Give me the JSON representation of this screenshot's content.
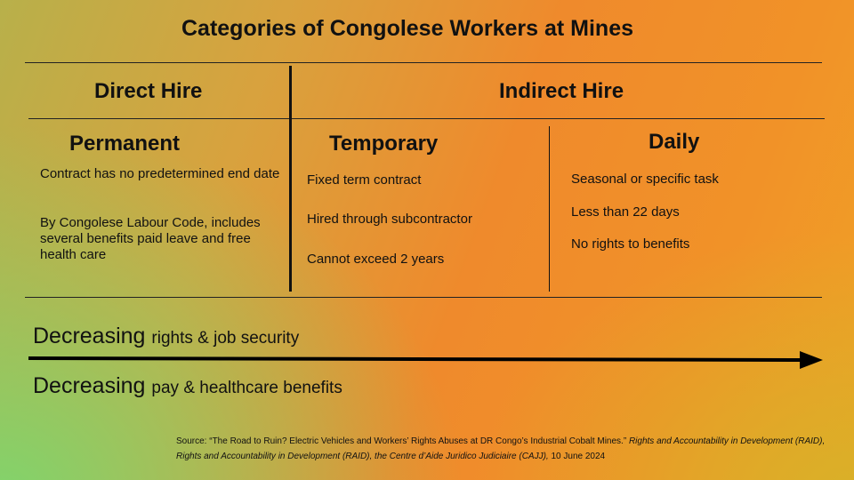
{
  "title": "Categories of Congolese Workers at Mines",
  "columns": {
    "direct": {
      "label": "Direct Hire"
    },
    "indirect": {
      "label": "Indirect Hire"
    }
  },
  "categories": {
    "permanent": {
      "heading": "Permanent",
      "items": [
        "Contract has no predetermined end date",
        "By Congolese Labour Code, includes several benefits paid leave and free health care"
      ]
    },
    "temporary": {
      "heading": "Temporary",
      "items": [
        "Fixed term contract",
        "Hired through subcontractor",
        "Cannot exceed 2 years"
      ]
    },
    "daily": {
      "heading": "Daily",
      "items": [
        "Seasonal or specific task",
        "Less than 22 days",
        "No rights to benefits"
      ]
    }
  },
  "scale": {
    "top": {
      "word": "Decreasing",
      "rest": "rights & job security"
    },
    "bottom": {
      "word": "Decreasing",
      "rest": "pay & healthcare benefits"
    }
  },
  "source": {
    "prefix": "Source: “The Road to Ruin? Electric Vehicles and Workers’ Rights Abuses at DR Congo’s Industrial Cobalt Mines.”",
    "publisher": "Rights and Accountability in Development (RAID), Rights and Accountability in Development (RAID), the Centre d’Aide Juridico Judiciaire (CAJJ),",
    "date": "10 June 2024"
  }
}
